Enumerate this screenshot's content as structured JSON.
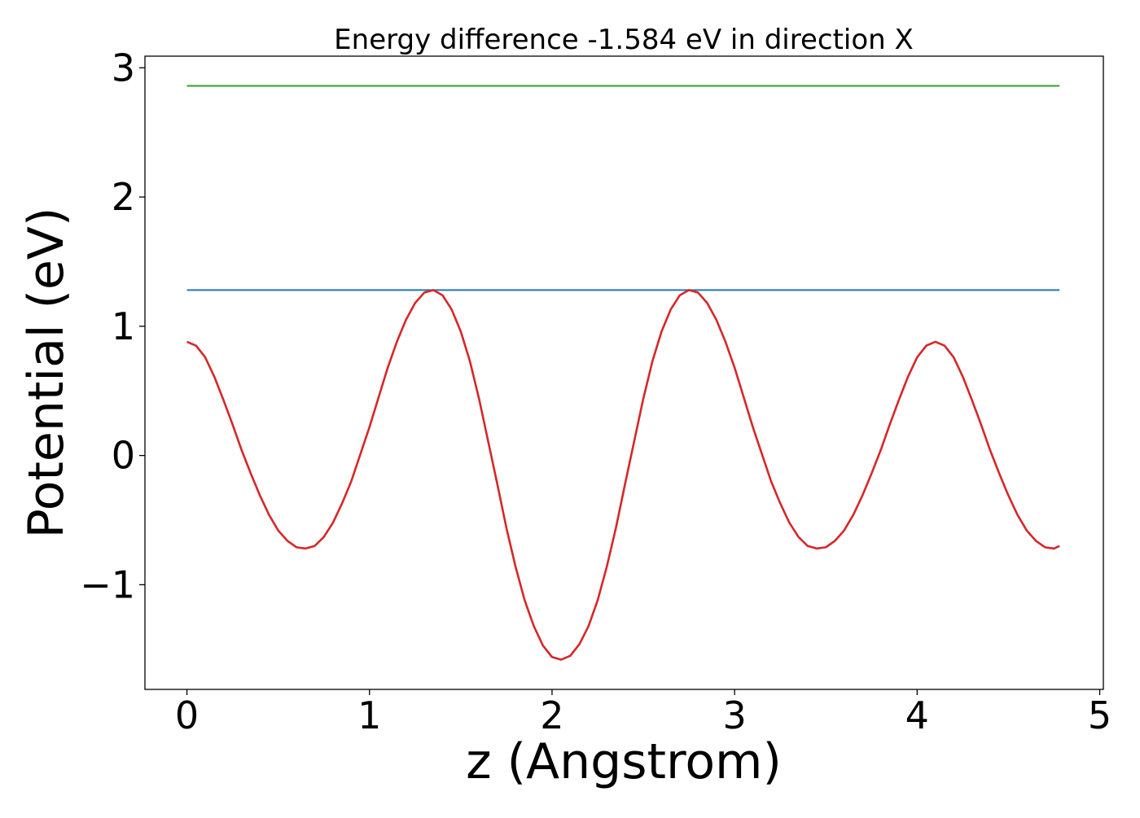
{
  "chart_data": {
    "type": "line",
    "title": "Energy difference -1.584 eV in direction X",
    "xlabel": "z (Angstrom)",
    "ylabel": "Potential (eV)",
    "xlim": [
      -0.23,
      5.02
    ],
    "ylim": [
      -1.81,
      3.09
    ],
    "xticks": [
      0,
      1,
      2,
      3,
      4,
      5
    ],
    "yticks": [
      -1,
      0,
      1,
      2,
      3
    ],
    "xtick_labels": [
      "0",
      "1",
      "2",
      "3",
      "4",
      "5"
    ],
    "ytick_labels": [
      "−1",
      "0",
      "1",
      "2",
      "3"
    ],
    "grid": false,
    "legend": "none",
    "series": [
      {
        "color": "#1f77b4",
        "kind": "horizontal",
        "x": [
          0,
          4.78
        ],
        "y": [
          1.28,
          1.28
        ]
      },
      {
        "color": "#2ca02c",
        "kind": "horizontal",
        "x": [
          0,
          4.78
        ],
        "y": [
          2.86,
          2.86
        ]
      },
      {
        "color": "#d62728",
        "kind": "curve",
        "x": [
          0.0,
          0.05,
          0.1,
          0.15,
          0.2,
          0.25,
          0.3,
          0.35,
          0.4,
          0.45,
          0.5,
          0.55,
          0.6,
          0.65,
          0.7,
          0.75,
          0.8,
          0.85,
          0.9,
          0.95,
          1.0,
          1.05,
          1.1,
          1.15,
          1.2,
          1.25,
          1.3,
          1.35,
          1.4,
          1.45,
          1.5,
          1.55,
          1.6,
          1.65,
          1.7,
          1.75,
          1.8,
          1.85,
          1.9,
          1.95,
          2.0,
          2.05,
          2.1,
          2.15,
          2.2,
          2.25,
          2.3,
          2.35,
          2.4,
          2.45,
          2.5,
          2.55,
          2.6,
          2.65,
          2.7,
          2.75,
          2.8,
          2.85,
          2.9,
          2.95,
          3.0,
          3.05,
          3.1,
          3.15,
          3.2,
          3.25,
          3.3,
          3.35,
          3.4,
          3.45,
          3.5,
          3.55,
          3.6,
          3.65,
          3.7,
          3.75,
          3.8,
          3.85,
          3.9,
          3.95,
          4.0,
          4.05,
          4.1,
          4.15,
          4.2,
          4.25,
          4.3,
          4.35,
          4.4,
          4.45,
          4.5,
          4.55,
          4.6,
          4.65,
          4.7,
          4.75,
          4.78
        ],
        "y": [
          0.88,
          0.85,
          0.76,
          0.61,
          0.43,
          0.24,
          0.04,
          -0.14,
          -0.31,
          -0.46,
          -0.58,
          -0.66,
          -0.71,
          -0.72,
          -0.7,
          -0.63,
          -0.52,
          -0.37,
          -0.2,
          0.01,
          0.22,
          0.45,
          0.68,
          0.88,
          1.05,
          1.18,
          1.26,
          1.28,
          1.24,
          1.13,
          0.96,
          0.73,
          0.44,
          0.11,
          -0.22,
          -0.56,
          -0.86,
          -1.12,
          -1.32,
          -1.47,
          -1.56,
          -1.58,
          -1.55,
          -1.46,
          -1.32,
          -1.12,
          -0.86,
          -0.56,
          -0.22,
          0.11,
          0.44,
          0.73,
          0.96,
          1.13,
          1.24,
          1.28,
          1.26,
          1.18,
          1.05,
          0.88,
          0.68,
          0.45,
          0.22,
          0.01,
          -0.2,
          -0.37,
          -0.52,
          -0.63,
          -0.7,
          -0.72,
          -0.71,
          -0.66,
          -0.58,
          -0.46,
          -0.31,
          -0.14,
          0.04,
          0.24,
          0.43,
          0.61,
          0.76,
          0.85,
          0.88,
          0.85,
          0.76,
          0.61,
          0.43,
          0.24,
          0.04,
          -0.14,
          -0.31,
          -0.46,
          -0.58,
          -0.66,
          -0.71,
          -0.72,
          -0.7
        ]
      }
    ]
  }
}
